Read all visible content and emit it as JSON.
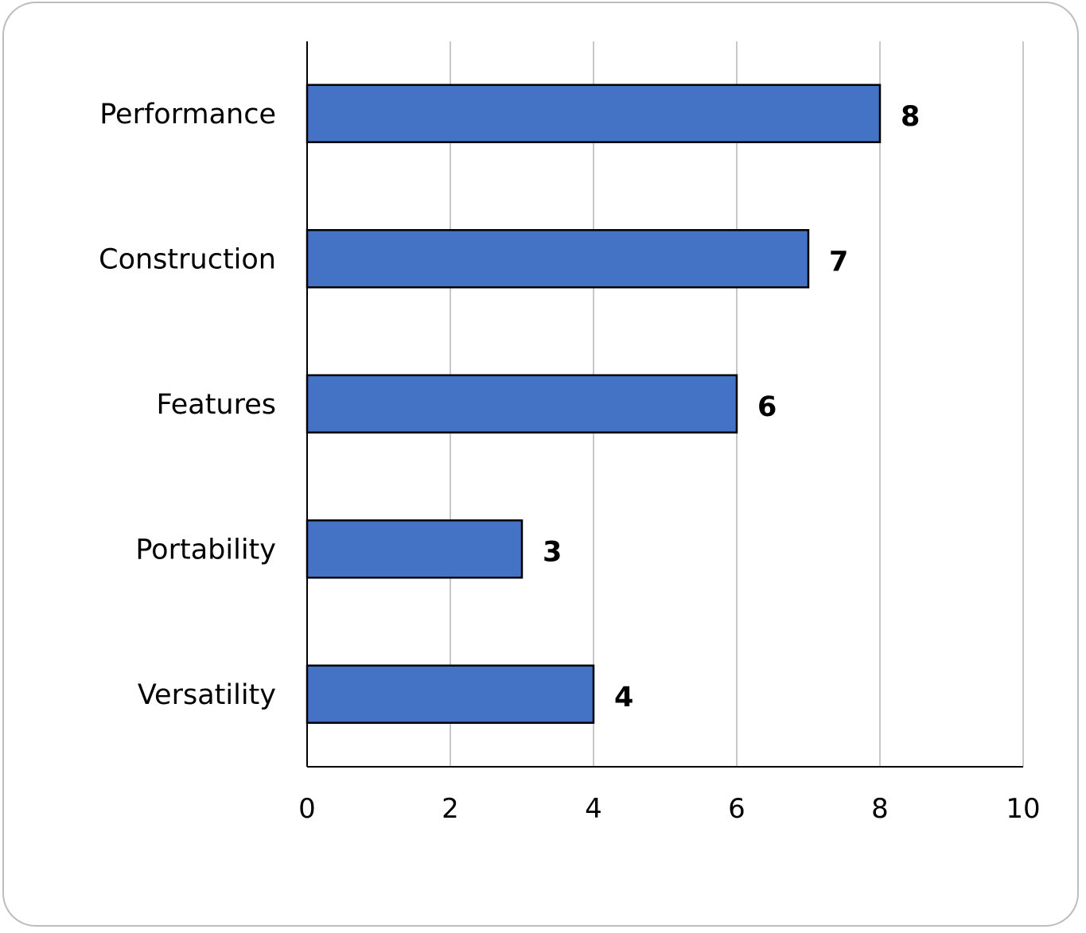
{
  "chart_data": {
    "type": "bar",
    "orientation": "horizontal",
    "categories": [
      "Performance",
      "Construction",
      "Features",
      "Portability",
      "Versatility"
    ],
    "values": [
      8,
      7,
      6,
      3,
      4
    ],
    "xticks": [
      "0",
      "2",
      "4",
      "6",
      "8",
      "10"
    ],
    "xlim": [
      0,
      10
    ],
    "grid": "vertical",
    "data_labels": true,
    "legend": "none",
    "colors": {
      "bar": "#4472c4",
      "bar_border": "#000000",
      "grid": "#c8c8c8",
      "axis": "#000000"
    }
  }
}
